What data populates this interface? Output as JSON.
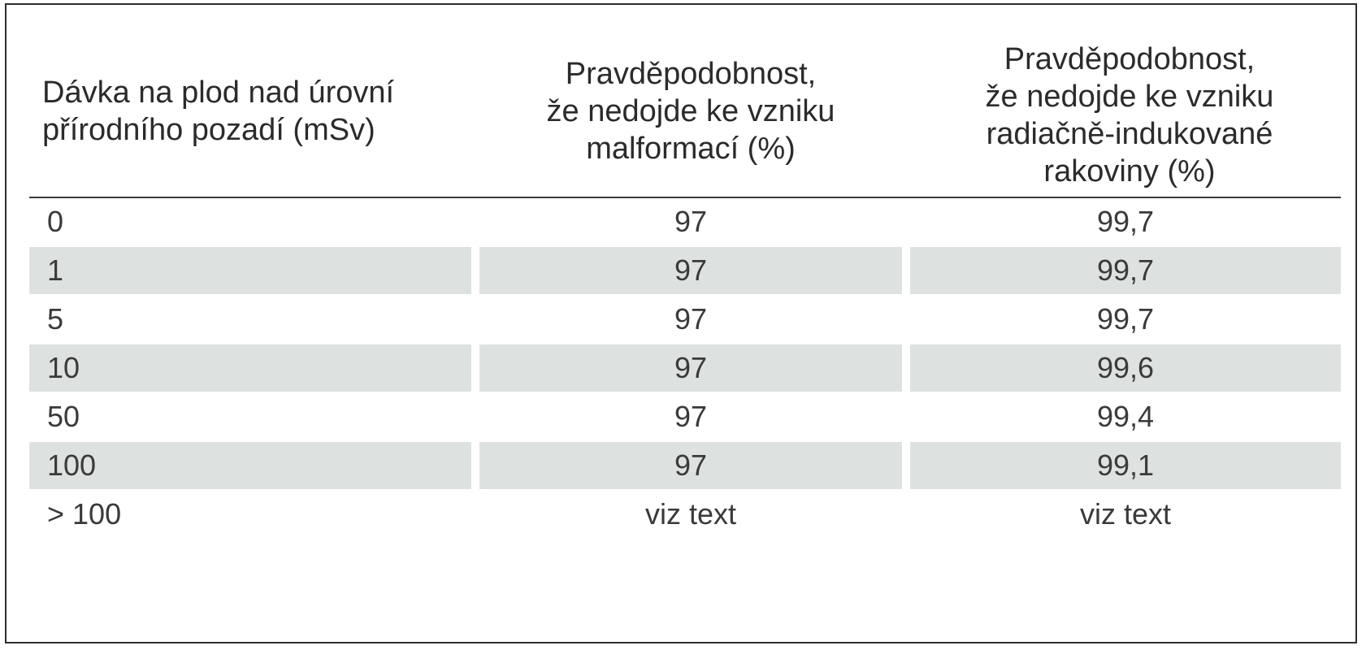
{
  "table": {
    "headers": [
      "Dávka na plod nad úrovní\npřírodního pozadí (mSv)",
      "Pravděpodobnost,\nže nedojde ke vzniku\nmalformací (%)",
      "Pravděpodobnost,\nže nedojde ke vzniku\nradiačně-indukované\nrakoviny (%)"
    ],
    "rows": [
      [
        "0",
        "97",
        "99,7"
      ],
      [
        "1",
        "97",
        "99,7"
      ],
      [
        "5",
        "97",
        "99,7"
      ],
      [
        "10",
        "97",
        "99,6"
      ],
      [
        "50",
        "97",
        "99,4"
      ],
      [
        "100",
        "97",
        "99,1"
      ],
      [
        "> 100",
        "viz text",
        "viz text"
      ]
    ]
  },
  "colors": {
    "row_shade": "#dde2e1",
    "border": "#2e2e2e",
    "text": "#2b2b2b"
  }
}
